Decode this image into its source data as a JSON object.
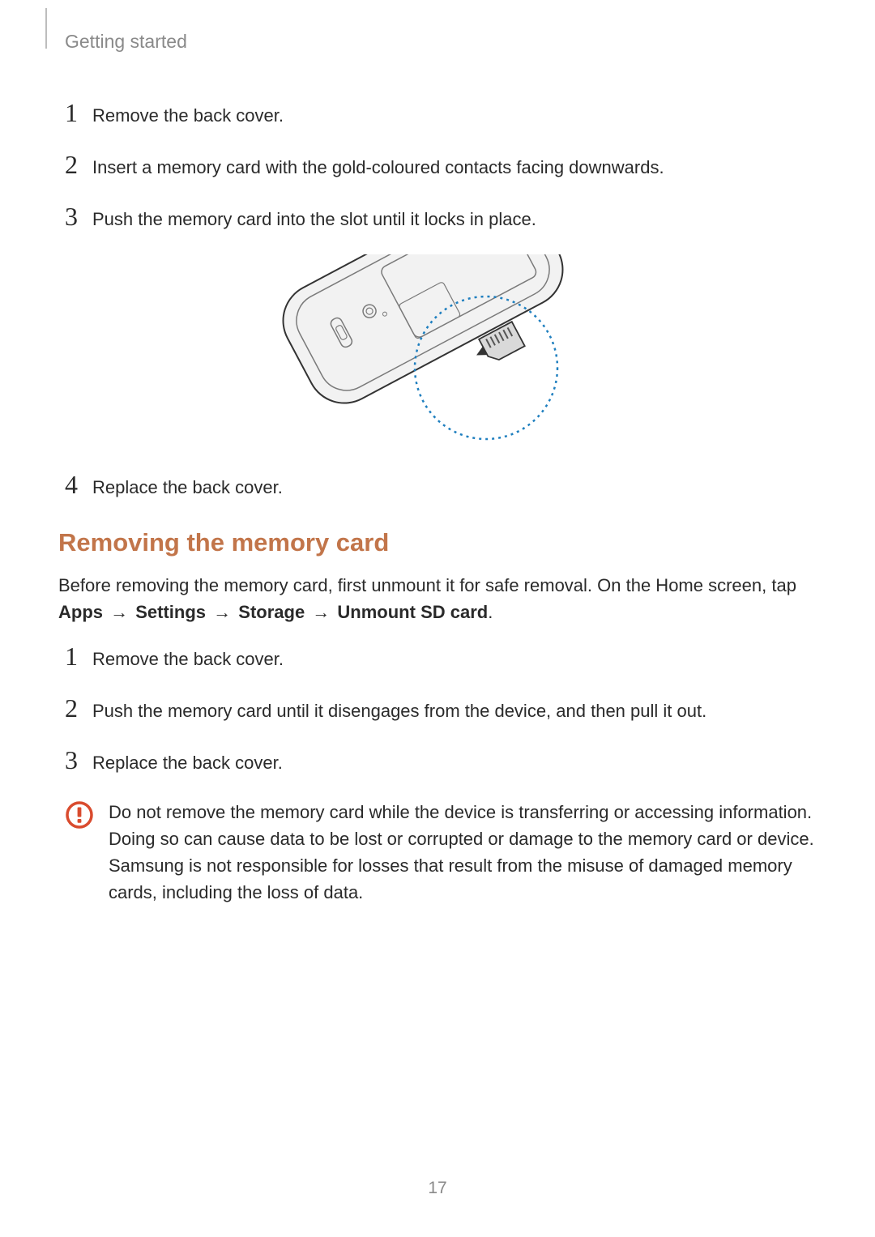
{
  "header": {
    "title": "Getting started"
  },
  "install_steps": [
    {
      "num": "1",
      "text": "Remove the back cover."
    },
    {
      "num": "2",
      "text": "Insert a memory card with the gold-coloured contacts facing downwards."
    },
    {
      "num": "3",
      "text": "Push the memory card into the slot until it locks in place."
    }
  ],
  "install_steps_after": [
    {
      "num": "4",
      "text": "Replace the back cover."
    }
  ],
  "figure": {
    "phone": {
      "body_fill": "#f2f2f2",
      "body_stroke": "#333333",
      "stroke_width": 2,
      "inner_stroke": "#7a7a7a"
    },
    "focus_circle": {
      "stroke": "#1f7fbf",
      "stroke_width": 2.5,
      "dash": "3,5",
      "radius": 88
    },
    "arrow_fill": "#333333"
  },
  "section2": {
    "title": "Removing the memory card",
    "title_color": "#c2754a",
    "intro_prefix": "Before removing the memory card, first unmount it for safe removal. On the Home screen, tap ",
    "path": [
      "Apps",
      "Settings",
      "Storage",
      "Unmount SD card"
    ],
    "arrow_glyph": "→"
  },
  "remove_steps": [
    {
      "num": "1",
      "text": "Remove the back cover."
    },
    {
      "num": "2",
      "text": "Push the memory card until it disengages from the device, and then pull it out."
    },
    {
      "num": "3",
      "text": "Replace the back cover."
    }
  ],
  "callout": {
    "icon_color": "#d94b2e",
    "text": "Do not remove the memory card while the device is transferring or accessing information. Doing so can cause data to be lost or corrupted or damage to the memory card or device. Samsung is not responsible for losses that result from the misuse of damaged memory cards, including the loss of data."
  },
  "page_number": "17"
}
